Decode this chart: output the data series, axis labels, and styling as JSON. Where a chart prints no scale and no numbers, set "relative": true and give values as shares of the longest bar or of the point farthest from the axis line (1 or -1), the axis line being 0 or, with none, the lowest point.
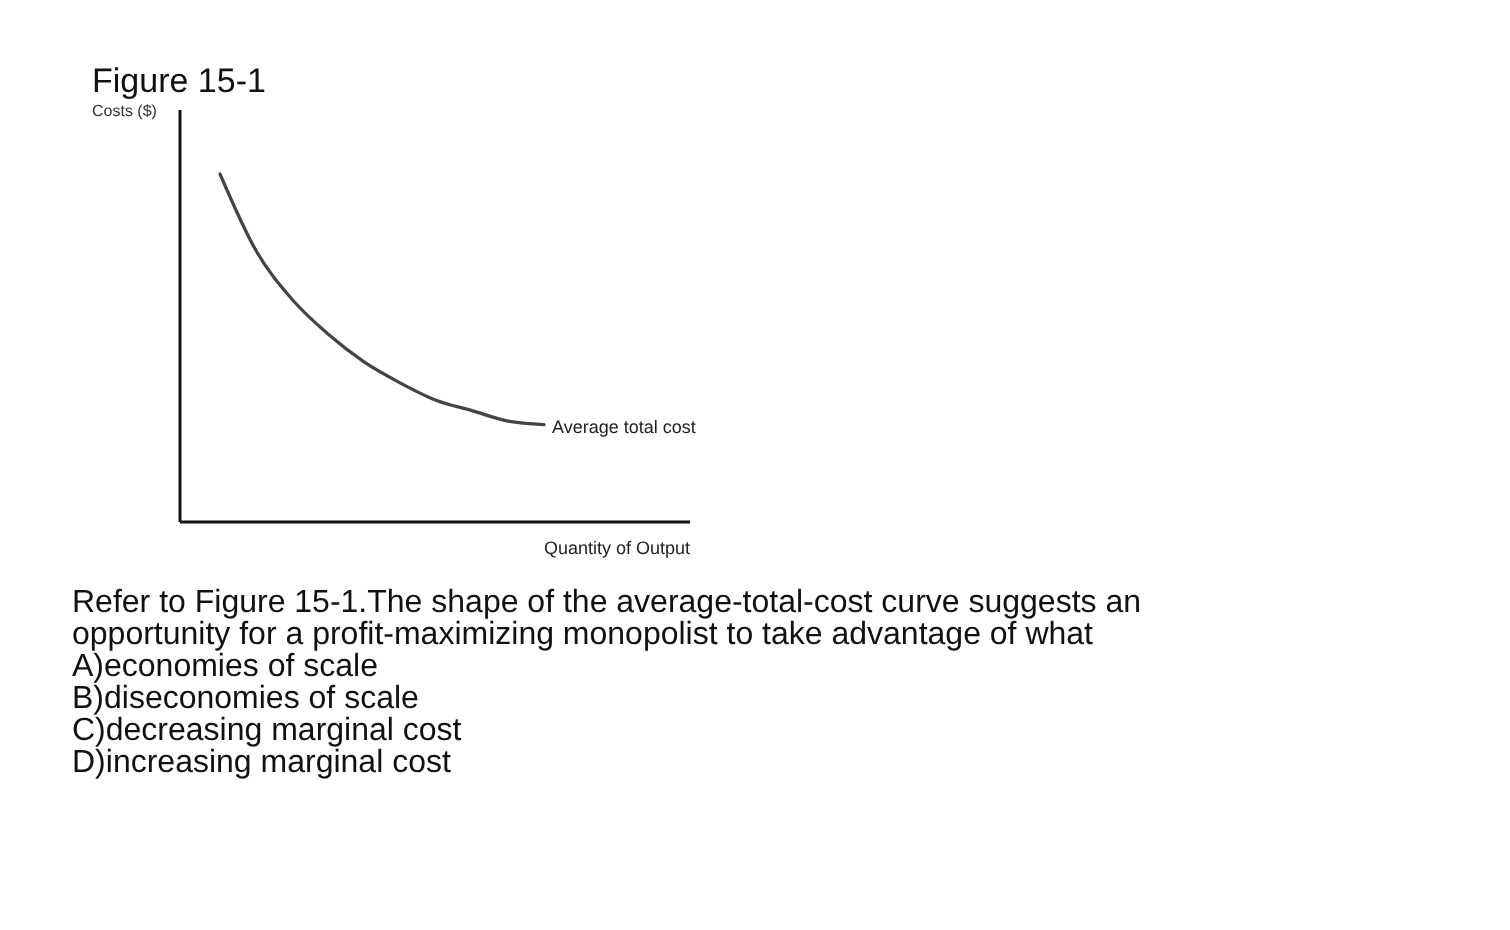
{
  "chart_data": {
    "type": "line",
    "title": "Figure 15-1",
    "ylabel": "Costs ($)",
    "xlabel": "Quantity of Output",
    "relative": true,
    "categories": [
      null,
      null,
      null,
      null,
      null,
      null,
      null,
      null,
      null,
      null
    ],
    "series": [
      {
        "name": "Average total cost",
        "color": "#444444",
        "values": [
          1,
          0.78,
          0.64,
          0.54,
          0.46,
          0.4,
          0.35,
          0.32,
          0.29,
          0.28
        ]
      }
    ],
    "annotations": [
      "Refer to Figure 15-1.The shape of the average-total-cost curve suggests an opportunity for a profit-maximizing monopolist to take advantage of what",
      "A)economies of scale",
      "B)diseconomies of scale",
      "C)decreasing marginal cost",
      "D)increasing marginal cost"
    ]
  }
}
